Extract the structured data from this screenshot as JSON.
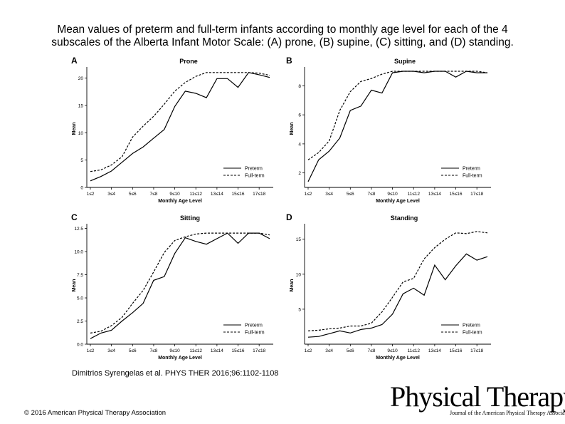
{
  "slide": {
    "title_line1": "Mean values of preterm and full-term infants according to monthly age level for each of the 4",
    "title_line2": "subscales of the Alberta Infant Motor Scale: (A) prone, (B) supine, (C) sitting, and (D) standing.",
    "citation": "Dimitrios Syrengelas et al. PHYS THER 2016;96:1102-1108",
    "copyright": "© 2016 American Physical Therapy Association",
    "logo": {
      "main": "Physical Therapy",
      "subtitle": "Journal of the American Physical Therapy Association"
    }
  },
  "chart_data": [
    {
      "panel_letter": "A",
      "type": "line",
      "title": "Prone",
      "xlabel": "Monthly Age Level",
      "ylabel": "Mean",
      "ylim": [
        0,
        21.5
      ],
      "yticks": [
        0,
        5,
        10,
        15,
        20
      ],
      "ytick_labels": [
        "0",
        "5",
        "10",
        "15",
        "20"
      ],
      "x_tick_labels": [
        "1≤2",
        "3≤4",
        "5≤6",
        "7≤8",
        "9≤10",
        "11≤12",
        "13≤14",
        "15≤16",
        "17≤18"
      ],
      "legend_position": "bottom-right",
      "series": [
        {
          "name": "Preterm",
          "style": "solid",
          "values": [
            1.2,
            2.0,
            3.0,
            4.6,
            6.2,
            7.4,
            9.0,
            10.6,
            14.8,
            17.6,
            17.2,
            16.4,
            19.9,
            19.9,
            18.3,
            21.0,
            20.6,
            20.1
          ]
        },
        {
          "name": "Full-term",
          "style": "dashed",
          "values": [
            2.9,
            3.2,
            4.1,
            5.6,
            9.2,
            11.2,
            13.0,
            15.2,
            17.6,
            19.2,
            20.3,
            21.0,
            21.0,
            21.0,
            21.0,
            21.0,
            20.9,
            20.5
          ]
        }
      ]
    },
    {
      "panel_letter": "B",
      "type": "line",
      "title": "Supine",
      "xlabel": "Monthly Age Level",
      "ylabel": "Mean",
      "ylim": [
        1,
        9.1
      ],
      "yticks": [
        2,
        4,
        6,
        8
      ],
      "ytick_labels": [
        "2",
        "4",
        "6",
        "8"
      ],
      "x_tick_labels": [
        "1≤2",
        "3≤4",
        "5≤6",
        "7≤8",
        "9≤10",
        "11≤12",
        "13≤14",
        "15≤16",
        "17≤18"
      ],
      "legend_position": "bottom-right",
      "series": [
        {
          "name": "Preterm",
          "style": "solid",
          "values": [
            1.4,
            2.9,
            3.5,
            4.4,
            6.3,
            6.6,
            7.7,
            7.5,
            8.9,
            9.0,
            9.0,
            8.9,
            9.0,
            9.0,
            8.6,
            9.0,
            8.9,
            8.9
          ]
        },
        {
          "name": "Full-term",
          "style": "dashed",
          "values": [
            2.9,
            3.4,
            4.2,
            6.3,
            7.6,
            8.3,
            8.5,
            8.8,
            9.0,
            9.0,
            9.0,
            9.0,
            9.0,
            9.0,
            9.0,
            9.0,
            9.0,
            8.9
          ]
        }
      ]
    },
    {
      "panel_letter": "C",
      "type": "line",
      "title": "Sitting",
      "xlabel": "Monthly Age Level",
      "ylabel": "Mean",
      "ylim": [
        0,
        12.7
      ],
      "yticks": [
        0,
        2.5,
        5,
        7.5,
        10,
        12.5
      ],
      "ytick_labels": [
        "0.0",
        "2.5",
        "5.0",
        "7.5",
        "10.0",
        "12.5"
      ],
      "x_tick_labels": [
        "1≤2",
        "3≤4",
        "5≤6",
        "7≤8",
        "9≤10",
        "11≤12",
        "13≤14",
        "15≤16",
        "17≤18"
      ],
      "legend_position": "bottom-right",
      "series": [
        {
          "name": "Preterm",
          "style": "solid",
          "values": [
            0.6,
            1.2,
            1.5,
            2.5,
            3.4,
            4.4,
            6.9,
            7.3,
            9.8,
            11.5,
            11.1,
            10.8,
            11.4,
            12.0,
            10.9,
            12.0,
            12.0,
            11.4
          ]
        },
        {
          "name": "Full-term",
          "style": "dashed",
          "values": [
            1.2,
            1.4,
            2.0,
            2.9,
            4.4,
            5.8,
            7.8,
            9.9,
            11.2,
            11.6,
            11.9,
            12.0,
            12.0,
            12.0,
            12.0,
            12.0,
            12.0,
            11.8
          ]
        }
      ]
    },
    {
      "panel_letter": "D",
      "type": "line",
      "title": "Standing",
      "xlabel": "Monthly Age Level",
      "ylabel": "Mean",
      "ylim": [
        0,
        16.8
      ],
      "yticks": [
        5,
        10,
        15
      ],
      "ytick_labels": [
        "5",
        "10",
        "15"
      ],
      "x_tick_labels": [
        "1≤2",
        "3≤4",
        "5≤6",
        "7≤8",
        "9≤10",
        "11≤12",
        "13≤14",
        "15≤16",
        "17≤18"
      ],
      "legend_position": "bottom-right",
      "series": [
        {
          "name": "Preterm",
          "style": "solid",
          "values": [
            1.0,
            1.1,
            1.5,
            1.9,
            1.6,
            2.1,
            2.3,
            2.8,
            4.3,
            7.2,
            8.0,
            7.0,
            11.3,
            9.2,
            11.2,
            12.9,
            12.0,
            12.5
          ]
        },
        {
          "name": "Full-term",
          "style": "dashed",
          "values": [
            1.9,
            2.0,
            2.2,
            2.3,
            2.6,
            2.6,
            3.0,
            4.6,
            6.7,
            8.9,
            9.4,
            12.2,
            13.8,
            15.0,
            15.9,
            15.8,
            16.1,
            15.9
          ]
        }
      ]
    }
  ]
}
